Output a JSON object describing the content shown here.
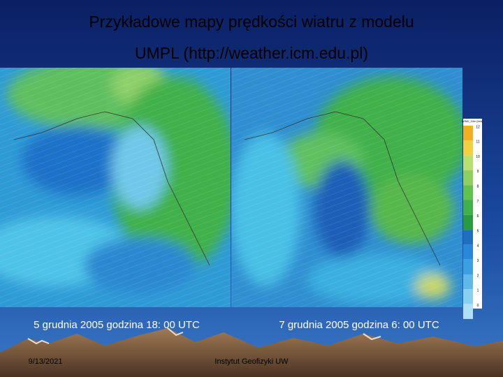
{
  "title": {
    "line1": "Przykładowe mapy prędkości wiatru z modelu",
    "line2": "UMPL (http://weather.icm.edu.pl)"
  },
  "maps": [
    {
      "caption": "5 grudnia 2005 godzina 18: 00 UTC"
    },
    {
      "caption": "7 grudnia 2005 godzina 6: 00 UTC"
    }
  ],
  "legend": {
    "title": "WIND_10m [m/s]",
    "labels": [
      "12",
      "11",
      "10",
      "9",
      "8",
      "7",
      "6",
      "5",
      "4",
      "3",
      "2",
      "1",
      "0"
    ]
  },
  "footer": {
    "date": "9/13/2021",
    "institute": "Instytut Geofizyki UW"
  }
}
